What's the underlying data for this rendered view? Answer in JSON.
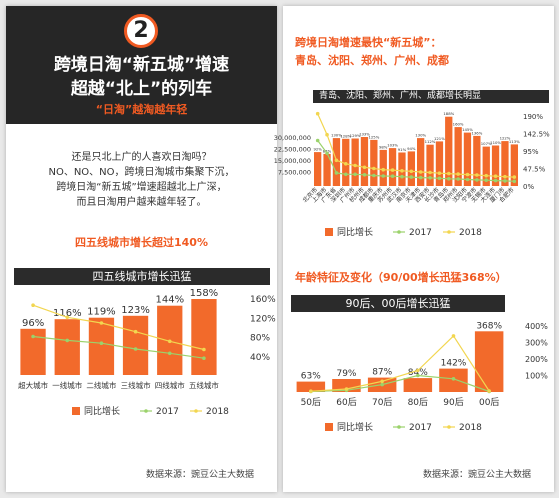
{
  "left": {
    "badge_number": "2",
    "title_line1": "跨境日淘“新五城”增速",
    "title_line2": "超越“北上”的列车",
    "subtitle": "“日淘”越淘越年轻",
    "intro_lines": [
      "还是只北上广的人喜欢日淘吗？",
      "NO、NO、NO，跨境日淘城市集聚下沉，",
      "跨境日淘“新五城”增速超越北上广深，",
      "而且日淘用户越来越年轻了。"
    ],
    "highlight": "四五线城市增长超过140%",
    "chart_title": "四五线城市增长迅猛",
    "source": "数据来源：豌豆公主大数据"
  },
  "right": {
    "heading_line1": "跨境日淘增速最快“新五城”：",
    "heading_line2": "青岛、沈阳、郑州、广州、成都",
    "city_chart_title": "青岛、沈阳、郑州、广州、成都增长明显",
    "age_heading": "年龄特征及变化（90/00增长迅猛368%）",
    "age_chart_title": "90后、00后增长迅猛",
    "source": "数据来源：豌豆公主大数据"
  },
  "colors": {
    "accent": "#f05a22",
    "bar": "#f26a2b",
    "line2017": "#9bd26b",
    "line2018": "#f2d650",
    "dark": "#2b2b2b"
  },
  "chart_data": [
    {
      "type": "bar",
      "title": "四五线城市增长迅猛",
      "categories": [
        "超大城市",
        "一线城市",
        "二线城市",
        "三线城市",
        "四线城市",
        "五线城市"
      ],
      "series": [
        {
          "name": "同比增长",
          "kind": "bar",
          "axis": "right",
          "values": [
            96,
            116,
            119,
            123,
            144,
            158
          ],
          "labels": [
            "96%",
            "116%",
            "119%",
            "123%",
            "144%",
            "158%"
          ]
        },
        {
          "name": "2017",
          "kind": "line",
          "axis": "left",
          "values": [
            80,
            72,
            66,
            54,
            45,
            35
          ]
        },
        {
          "name": "2018",
          "kind": "line",
          "axis": "left",
          "values": [
            145,
            120,
            108,
            90,
            70,
            53
          ]
        }
      ],
      "y_right_ticks": [
        "160%",
        "120%",
        "80%",
        "40%"
      ],
      "ylim_right": [
        0,
        160
      ]
    },
    {
      "type": "bar",
      "title": "青岛、沈阳、郑州、广州、成都增长明显",
      "categories": [
        "北京市",
        "上海市",
        "广东省",
        "深圳市",
        "广州市",
        "杭州市",
        "成都市",
        "重庆市",
        "苏州市",
        "武汉市",
        "南京市",
        "天津市",
        "西安市",
        "长沙市",
        "青岛市",
        "郑州市",
        "沈阳市",
        "宁波市",
        "无锡市",
        "大连市",
        "厦门市",
        "合肥市"
      ],
      "series": [
        {
          "name": "同比增长",
          "kind": "bar",
          "axis": "right",
          "values": [
            92,
            87,
            130,
            128,
            129,
            133,
            125,
            98,
            103,
            91,
            94,
            130,
            112,
            121,
            188,
            160,
            145,
            136,
            107,
            110,
            122,
            113
          ]
        },
        {
          "name": "2017",
          "kind": "line",
          "axis": "left",
          "values": [
            19500000,
            14000000,
            5600000,
            5000000,
            5000000,
            4800000,
            4500000,
            4300000,
            4200000,
            4000000,
            3800000,
            3600000,
            3500000,
            3300000,
            3100000,
            3000000,
            2800000,
            2600000,
            2500000,
            2300000,
            2200000,
            2000000
          ]
        },
        {
          "name": "2018",
          "kind": "line",
          "axis": "left",
          "values": [
            31000000,
            22000000,
            11000000,
            9500000,
            8800000,
            8000000,
            7500000,
            7000000,
            6800000,
            6500000,
            6300000,
            6000000,
            5800000,
            5500000,
            5300000,
            5100000,
            4900000,
            4700000,
            4400000,
            4200000,
            4000000,
            3800000
          ]
        }
      ],
      "y_left_ticks": [
        "30,000,000",
        "22,500,000",
        "15,000,000",
        "7,500,000",
        "0"
      ],
      "y_right_ticks": [
        "190%",
        "142.5%",
        "95%",
        "47.5%",
        "0%"
      ],
      "ylim_left": [
        0,
        30000000
      ],
      "ylim_right": [
        0,
        190
      ]
    },
    {
      "type": "bar",
      "title": "90后、00后增长迅猛",
      "categories": [
        "50后",
        "60后",
        "70后",
        "80后",
        "90后",
        "00后"
      ],
      "series": [
        {
          "name": "同比增长",
          "kind": "bar",
          "axis": "right",
          "values": [
            63,
            79,
            87,
            84,
            142,
            368
          ],
          "labels": [
            "63%",
            "79%",
            "87%",
            "84%",
            "142%",
            "368%"
          ]
        },
        {
          "name": "2017",
          "kind": "line",
          "axis": "left",
          "values": [
            3,
            10,
            45,
            100,
            80,
            3
          ]
        },
        {
          "name": "2018",
          "kind": "line",
          "axis": "left",
          "values": [
            5,
            18,
            65,
            130,
            340,
            6
          ]
        }
      ],
      "y_right_ticks": [
        "400%",
        "300%",
        "200%",
        "100%"
      ],
      "ylim_right": [
        0,
        400
      ]
    }
  ],
  "legend": {
    "bar": "同比增长",
    "l2017": "2017",
    "l2018": "2018"
  }
}
